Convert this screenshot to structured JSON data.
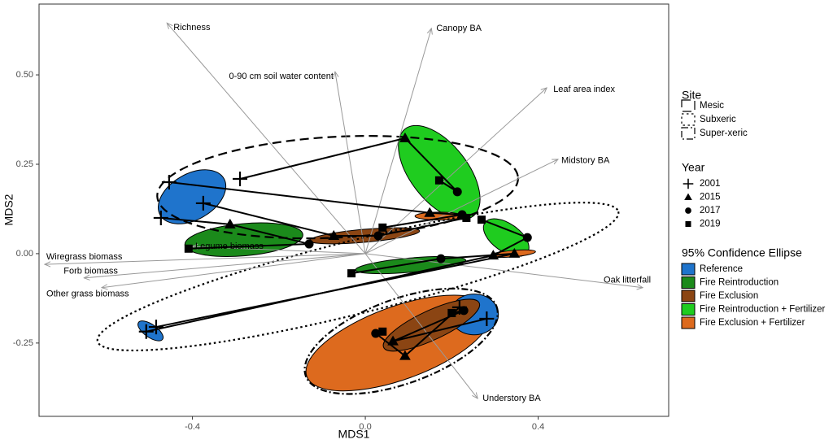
{
  "chart_data": {
    "type": "ordination",
    "xlabel": "MDS1",
    "ylabel": "MDS2",
    "xlim": [
      -0.755,
      0.702
    ],
    "ylim": [
      -0.455,
      0.698
    ],
    "xticks": [
      -0.4,
      {
        "value": 0,
        "label": "0.0"
      },
      0.4
    ],
    "yticks": [
      -0.25,
      {
        "value": 0,
        "label": "0.00"
      },
      0.25,
      {
        "value": 0.5,
        "label": "0.50"
      }
    ],
    "vectors": [
      {
        "name": "Richness",
        "x": -0.459,
        "y": 0.645
      },
      {
        "name": "Canopy BA",
        "x": 0.153,
        "y": 0.63
      },
      {
        "name": "0-90 cm soil water content",
        "x": -0.07,
        "y": 0.509
      },
      {
        "name": "Leaf area index",
        "x": 0.42,
        "y": 0.464
      },
      {
        "name": "Midstory BA",
        "x": 0.446,
        "y": 0.264
      },
      {
        "name": "Oak litterfall",
        "x": 0.642,
        "y": -0.095
      },
      {
        "name": "Understory BA",
        "x": 0.26,
        "y": -0.405
      },
      {
        "name": "Wiregrass biomass",
        "x": -0.742,
        "y": -0.03
      },
      {
        "name": "Forb biomass",
        "x": -0.651,
        "y": -0.068
      },
      {
        "name": "Other grass biomass",
        "x": -0.61,
        "y": -0.095
      },
      {
        "name": "Legume biomass",
        "x": -0.401,
        "y": 0.02
      }
    ],
    "site_title": "Site",
    "sites": [
      {
        "name": "Mesic",
        "linetype": "longdash",
        "cx": -0.064,
        "cy": 0.186,
        "rx": 0.418,
        "ry": 0.141,
        "angle": -3
      },
      {
        "name": "Subxeric",
        "linetype": "dotted",
        "cx": -0.017,
        "cy": -0.064,
        "rx": 0.621,
        "ry": 0.102,
        "angle": -14
      },
      {
        "name": "Super-xeric",
        "linetype": "dotdash",
        "cx": 0.083,
        "cy": -0.245,
        "rx": 0.235,
        "ry": 0.118,
        "angle": -20
      }
    ],
    "year_title": "Year",
    "years": [
      2001,
      2015,
      2017,
      2019
    ],
    "year_shapes": [
      "plus",
      "triangle",
      "circle",
      "square"
    ],
    "group_title": "95% Confidence Ellipse",
    "groups": [
      {
        "name": "Reference",
        "color": "#1f74cc"
      },
      {
        "name": "Fire Reintroduction",
        "color": "#1b8a1b"
      },
      {
        "name": "Fire Exclusion",
        "color": "#8b4513"
      },
      {
        "name": "Fire Reintroduction + Fertilizer",
        "color": "#1fcc1f"
      },
      {
        "name": "Fire Exclusion + Fertilizer",
        "color": "#dd6a1e"
      }
    ],
    "ellipses": [
      {
        "group": "Reference",
        "cx": -0.401,
        "cy": 0.159,
        "rx": 0.085,
        "ry": 0.064,
        "angle": -30
      },
      {
        "group": "Fire Reintroduction",
        "cx": -0.281,
        "cy": 0.039,
        "rx": 0.137,
        "ry": 0.045,
        "angle": -5
      },
      {
        "group": "Fire Exclusion",
        "cx": -0.002,
        "cy": 0.05,
        "rx": 0.128,
        "ry": 0.018,
        "angle": -5
      },
      {
        "group": "Fire Reintroduction + Fertilizer",
        "cx": 0.171,
        "cy": 0.227,
        "rx": 0.128,
        "ry": 0.08,
        "angle": 52
      },
      {
        "group": "Fire Exclusion + Fertilizer",
        "cx": 0.171,
        "cy": 0.105,
        "rx": 0.056,
        "ry": 0.011,
        "angle": 0
      },
      {
        "group": "Fire Reintroduction + Fertilizer",
        "cx": 0.326,
        "cy": 0.045,
        "rx": 0.06,
        "ry": 0.039,
        "angle": 35
      },
      {
        "group": "Fire Reintroduction",
        "cx": 0.105,
        "cy": -0.032,
        "rx": 0.128,
        "ry": 0.02,
        "angle": -5
      },
      {
        "group": "Fire Exclusion + Fertilizer",
        "cx": 0.341,
        "cy": 0.0,
        "rx": 0.053,
        "ry": 0.009,
        "angle": -5
      },
      {
        "group": "Reference",
        "cx": -0.497,
        "cy": -0.216,
        "rx": 0.034,
        "ry": 0.018,
        "angle": 35
      },
      {
        "group": "Fire Exclusion + Fertilizer",
        "cx": 0.077,
        "cy": -0.25,
        "rx": 0.226,
        "ry": 0.102,
        "angle": -20
      },
      {
        "group": "Reference",
        "cx": 0.252,
        "cy": -0.17,
        "rx": 0.056,
        "ry": 0.057,
        "angle": 0
      },
      {
        "group": "Fire Exclusion",
        "cx": 0.153,
        "cy": -0.2,
        "rx": 0.122,
        "ry": 0.041,
        "angle": -25
      }
    ],
    "trajectories": [
      {
        "site": "Mesic",
        "group": "Fire Reintroduction + Fertilizer",
        "x": [
          -0.29,
          0.092,
          0.213,
          0.171
        ],
        "y": [
          0.209,
          0.323,
          0.173,
          0.205
        ]
      },
      {
        "site": "Mesic",
        "group": "Fire Reintroduction",
        "x": [
          -0.473,
          -0.313,
          -0.13,
          -0.409
        ],
        "y": [
          0.1,
          0.082,
          0.027,
          0.014
        ]
      },
      {
        "site": "Mesic",
        "group": "Fire Exclusion",
        "x": [
          -0.454,
          0.149,
          0.224,
          0.04
        ],
        "y": [
          0.2,
          0.114,
          0.109,
          0.073
        ]
      },
      {
        "site": "Mesic",
        "group": "Reference",
        "x": [
          -0.375,
          -0.073,
          0.03,
          0.234
        ],
        "y": [
          0.141,
          0.05,
          0.05,
          0.1
        ]
      },
      {
        "site": "Subxeric",
        "group": "Reference",
        "x": [
          -0.507,
          0.296,
          0.375,
          0.269
        ],
        "y": [
          -0.218,
          -0.005,
          0.045,
          0.095
        ]
      },
      {
        "site": "Subxeric",
        "group": "Fire Reintroduction",
        "x": [
          -0.484,
          0.345,
          0.175,
          -0.032
        ],
        "y": [
          -0.205,
          0.0,
          -0.014,
          -0.055
        ]
      },
      {
        "site": "Super-xeric",
        "group": "Fire Exclusion + Fertilizer",
        "x": [
          0.218,
          0.092,
          0.024,
          0.04
        ],
        "y": [
          -0.15,
          -0.286,
          -0.223,
          -0.218
        ]
      },
      {
        "site": "Super-xeric",
        "group": "Reference",
        "x": [
          0.281,
          0.064,
          0.228,
          0.2
        ],
        "y": [
          -0.182,
          -0.245,
          -0.159,
          -0.166
        ]
      }
    ]
  }
}
